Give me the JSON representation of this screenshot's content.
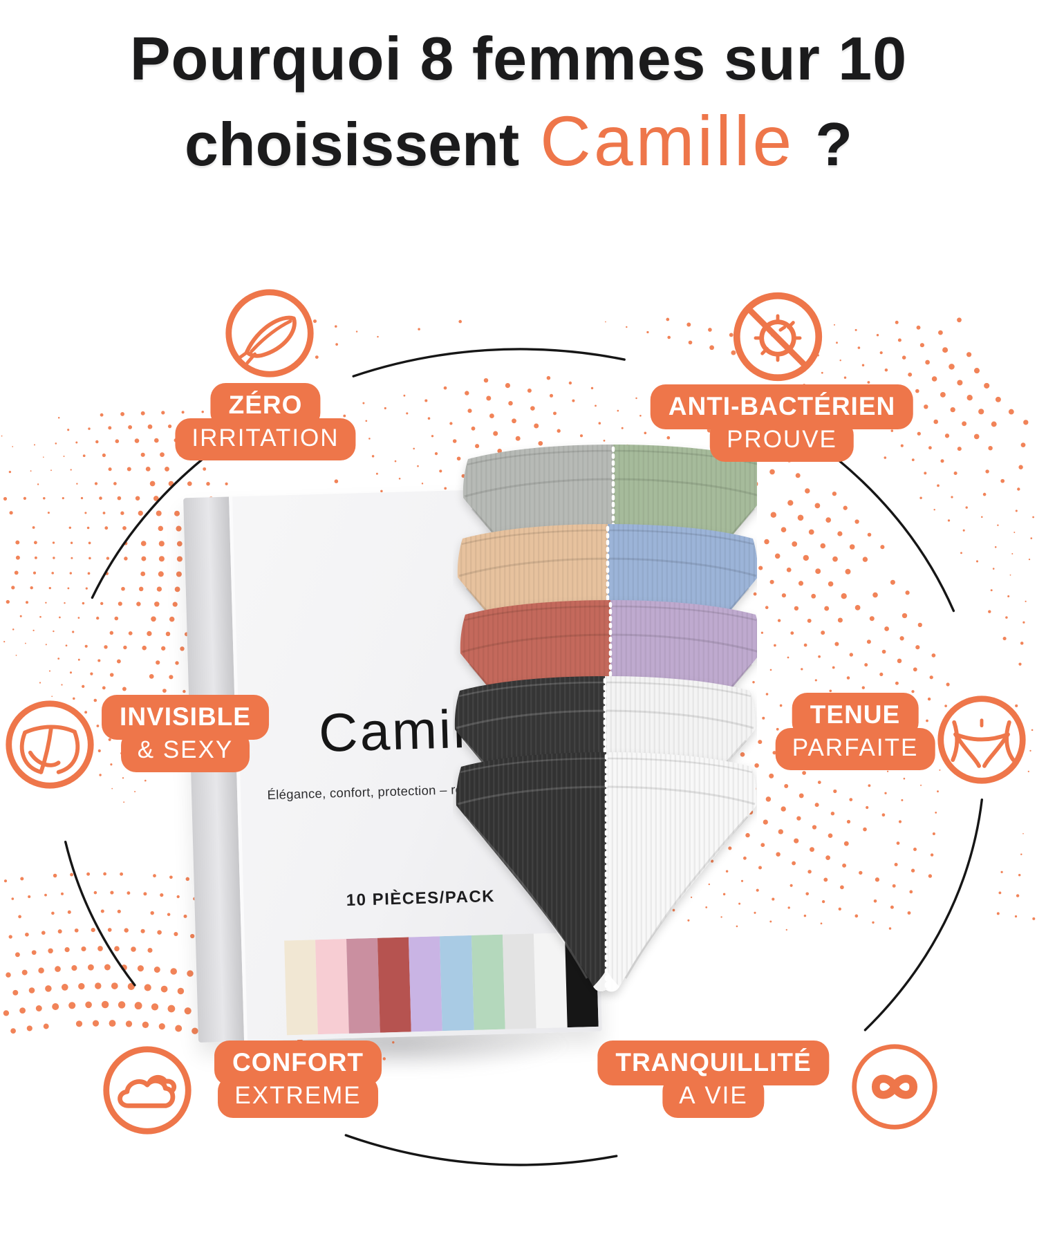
{
  "title": {
    "line1": "Pourquoi 8 femmes sur 10",
    "line2_prefix": "choisissent",
    "brand": "Camille",
    "line2_suffix": "?"
  },
  "colors": {
    "accent": "#EE764A",
    "dots": "#F0784A",
    "circle": "#161616",
    "title_text": "#1B1B1C"
  },
  "features": [
    {
      "id": "zero-irritation",
      "icon": "feather-icon",
      "line1": "ZÉRO",
      "line2": "IRRITATION"
    },
    {
      "id": "anti-bacterien",
      "icon": "no-bacteria-icon",
      "line1": "ANTI-BACTÉRIEN",
      "line2": "PROUVÉ"
    },
    {
      "id": "invisible-sexy",
      "icon": "thong-back-icon",
      "line1": "INVISIBLE",
      "line2": "& SEXY"
    },
    {
      "id": "tenue-parfaite",
      "icon": "thong-front-icon",
      "line1": "TENUE",
      "line2": "PARFAITE"
    },
    {
      "id": "confort-extreme",
      "icon": "cloud-icon",
      "line1": "CONFORT",
      "line2": "EXTRÊME"
    },
    {
      "id": "tranquillite-a-vie",
      "icon": "infinity-icon",
      "line1": "TRANQUILLITÉ",
      "line2": "À VIE"
    }
  ],
  "product_box": {
    "brand": "Camille",
    "tagline": "Élégance, confort, protection – réunis en un coffret.",
    "pack_label": "10 PIÈCES/PACK",
    "swatches": [
      "#F1E7D3",
      "#F7CDD3",
      "#CA8FA0",
      "#B65350",
      "#C9B4E4",
      "#A9CBE4",
      "#B4D8BC",
      "#E3E3E3",
      "#F4F4F4",
      "#161616"
    ]
  },
  "underwear_stack": {
    "rows": [
      {
        "left": "#B7BAB6",
        "right": "#A6BB9B"
      },
      {
        "left": "#E7C29E",
        "right": "#9CB4D8"
      },
      {
        "left": "#C4695B",
        "right": "#BFAACF"
      },
      {
        "left": "#343434",
        "right": "#F4F4F4"
      },
      {
        "left": "#303030",
        "right": "#F8F8F8"
      }
    ]
  }
}
